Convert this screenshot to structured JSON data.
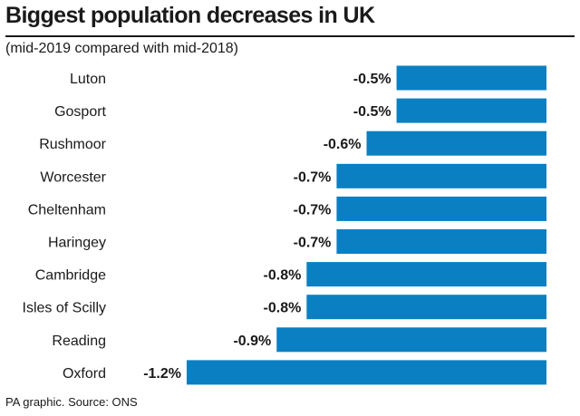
{
  "chart_data": {
    "type": "bar",
    "orientation": "horizontal",
    "title": "Biggest population decreases in UK",
    "subtitle": "(mid-2019 compared with mid-2018)",
    "categories": [
      "Luton",
      "Gosport",
      "Rushmoor",
      "Worcester",
      "Cheltenham",
      "Haringey",
      "Cambridge",
      "Isles of Scilly",
      "Reading",
      "Oxford"
    ],
    "values": [
      -0.5,
      -0.5,
      -0.6,
      -0.7,
      -0.7,
      -0.7,
      -0.8,
      -0.8,
      -0.9,
      -1.2
    ],
    "value_labels": [
      "-0.5%",
      "-0.5%",
      "-0.6%",
      "-0.7%",
      "-0.7%",
      "-0.7%",
      "-0.8%",
      "-0.8%",
      "-0.9%",
      "-1.2%"
    ],
    "xlim": [
      -1.2,
      0
    ],
    "grid": false,
    "legend": "none",
    "xlabel": "",
    "ylabel": "",
    "bar_color": "#0a7fc2"
  },
  "footer": {
    "source": "PA graphic. Source: ONS"
  }
}
